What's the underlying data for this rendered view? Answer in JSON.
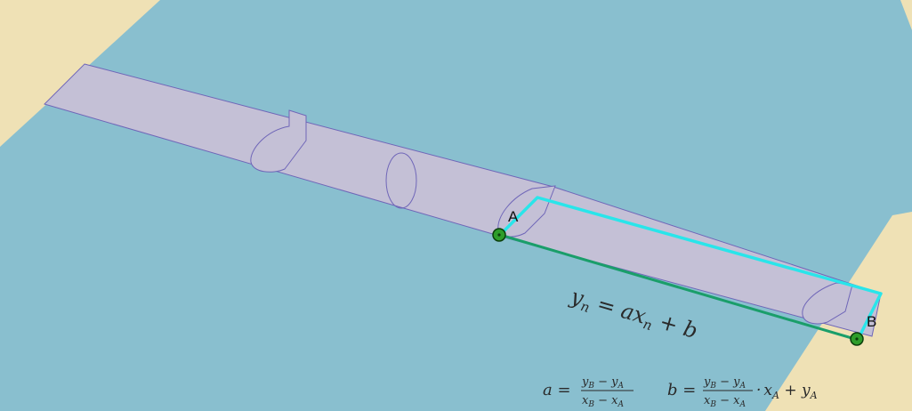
{
  "colors": {
    "water": "#89bfcf",
    "shore": "#efe1b5",
    "pipe_fill": "#c4c0d6",
    "pipe_stroke": "#6f66b8",
    "cyan_path": "#29e5ea",
    "green_line": "#1a9e6a",
    "point_fill": "#2e9d2a",
    "point_outline": "#0b3d0b"
  },
  "points": {
    "A": {
      "label": "A"
    },
    "B": {
      "label": "B"
    }
  },
  "equation_main": {
    "y_sub": "n",
    "y": "y",
    "eq": " = ",
    "a": "a",
    "x": "x",
    "x_sub": "n",
    "plus": " + ",
    "b": "b"
  },
  "formula_a": {
    "lhs": "a =",
    "num": "y",
    "num_sub1": "B",
    "num_mid": " − y",
    "num_sub2": "A",
    "den": "x",
    "den_sub1": "B",
    "den_mid": " − x",
    "den_sub2": "A"
  },
  "formula_b": {
    "lhs": "b =",
    "num": "y",
    "num_sub1": "B",
    "num_mid": " − y",
    "num_sub2": "A",
    "den": "x",
    "den_sub1": "B",
    "den_mid": " − x",
    "den_sub2": "A",
    "tail_dot": "·",
    "tail_x": "x",
    "tail_x_sub": "A",
    "tail_plus": " + ",
    "tail_y": "y",
    "tail_y_sub": "A"
  }
}
